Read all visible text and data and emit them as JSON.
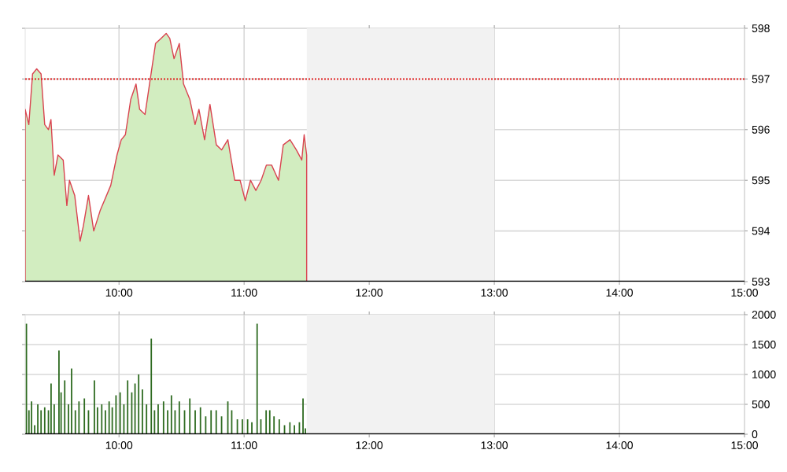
{
  "chart_data": [
    {
      "type": "area",
      "xlim": [
        9.25,
        15
      ],
      "ylim": [
        593,
        598
      ],
      "yticks": [
        593,
        594,
        595,
        596,
        597,
        598
      ],
      "xticks": [
        {
          "value": 10,
          "label": "10:00"
        },
        {
          "value": 11,
          "label": "11:00"
        },
        {
          "value": 12,
          "label": "12:00"
        },
        {
          "value": 13,
          "label": "13:00"
        },
        {
          "value": 14,
          "label": "14:00"
        },
        {
          "value": 15,
          "label": "15:00"
        }
      ],
      "grid": true,
      "x": [
        9.25,
        9.279,
        9.309,
        9.342,
        9.377,
        9.406,
        9.436,
        9.456,
        9.482,
        9.512,
        9.554,
        9.583,
        9.604,
        9.646,
        9.689,
        9.715,
        9.756,
        9.798,
        9.849,
        9.934,
        9.984,
        10.018,
        10.051,
        10.094,
        10.136,
        10.165,
        10.208,
        10.25,
        10.292,
        10.335,
        10.377,
        10.406,
        10.44,
        10.482,
        10.516,
        10.566,
        10.608,
        10.639,
        10.684,
        10.727,
        10.778,
        10.82,
        10.87,
        10.925,
        10.968,
        11.009,
        11.051,
        11.094,
        11.136,
        11.178,
        11.22,
        11.275,
        11.313,
        11.367,
        11.418,
        11.461,
        11.48,
        11.5
      ],
      "series": [
        {
          "color": "#d2edc0",
          "values": [
            596.4,
            596.1,
            597.1,
            597.2,
            597.1,
            596.1,
            596.0,
            596.2,
            595.1,
            595.5,
            595.4,
            594.5,
            595.0,
            594.7,
            593.8,
            594.1,
            594.7,
            594.0,
            594.4,
            594.9,
            595.5,
            595.8,
            595.9,
            596.6,
            596.9,
            596.4,
            596.3,
            597.0,
            597.7,
            597.8,
            597.9,
            597.8,
            597.4,
            597.7,
            596.9,
            596.6,
            596.1,
            596.4,
            595.8,
            596.5,
            595.7,
            595.6,
            595.8,
            595.0,
            595.0,
            594.6,
            595.0,
            594.8,
            595.0,
            595.3,
            595.3,
            595.0,
            595.7,
            595.8,
            595.6,
            595.4,
            595.9,
            595.5
          ]
        }
      ],
      "ref_lines": [
        {
          "axis": "y",
          "value": 597,
          "color": "#e02020",
          "line_style": "dotted"
        }
      ],
      "bands": [
        {
          "axis": "x",
          "from": 11.5,
          "to": 13,
          "color": "#f2f2f2"
        }
      ]
    },
    {
      "type": "bar",
      "xlim": [
        9.25,
        15
      ],
      "ylim": [
        0,
        2000
      ],
      "yticks": [
        0,
        500,
        1000,
        1500,
        2000
      ],
      "xticks": [
        {
          "value": 10,
          "label": "10:00"
        },
        {
          "value": 11,
          "label": "11:00"
        },
        {
          "value": 12,
          "label": "12:00"
        },
        {
          "value": 13,
          "label": "13:00"
        },
        {
          "value": 14,
          "label": "14:00"
        },
        {
          "value": 15,
          "label": "15:00"
        }
      ],
      "grid": true,
      "x": [
        9.26,
        9.28,
        9.301,
        9.326,
        9.351,
        9.377,
        9.406,
        9.436,
        9.457,
        9.482,
        9.52,
        9.537,
        9.566,
        9.596,
        9.621,
        9.651,
        9.68,
        9.723,
        9.756,
        9.803,
        9.828,
        9.862,
        9.891,
        9.921,
        9.946,
        9.976,
        10.009,
        10.039,
        10.069,
        10.102,
        10.128,
        10.157,
        10.187,
        10.22,
        10.258,
        10.284,
        10.313,
        10.356,
        10.389,
        10.419,
        10.448,
        10.482,
        10.524,
        10.566,
        10.609,
        10.651,
        10.693,
        10.736,
        10.777,
        10.82,
        10.87,
        10.901,
        10.946,
        10.986,
        11.028,
        11.062,
        11.104,
        11.134,
        11.176,
        11.205,
        11.239,
        11.281,
        11.323,
        11.366,
        11.402,
        11.442,
        11.471,
        11.49
      ],
      "series": [
        {
          "color": "#2e6b20",
          "values": [
            1850,
            400,
            550,
            150,
            500,
            400,
            450,
            400,
            850,
            500,
            1400,
            700,
            900,
            500,
            1100,
            400,
            550,
            600,
            400,
            900,
            450,
            500,
            400,
            550,
            450,
            650,
            700,
            500,
            900,
            700,
            850,
            1000,
            750,
            500,
            1600,
            400,
            500,
            550,
            400,
            650,
            400,
            550,
            400,
            600,
            400,
            450,
            300,
            400,
            400,
            300,
            550,
            400,
            250,
            250,
            250,
            200,
            1850,
            250,
            400,
            400,
            300,
            250,
            150,
            200,
            150,
            200,
            600,
            100
          ]
        }
      ],
      "bands": [
        {
          "axis": "x",
          "from": 11.5,
          "to": 13,
          "color": "#f2f2f2"
        }
      ]
    }
  ]
}
